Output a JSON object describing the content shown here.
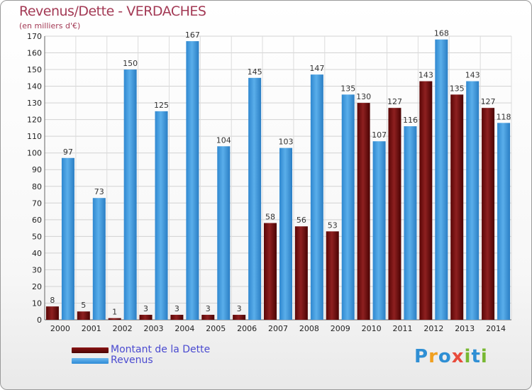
{
  "chart_data": {
    "type": "bar",
    "title": "Revenus/Dette - VERDACHES",
    "subtitle": "(en milliers d'€)",
    "categories": [
      "2000",
      "2001",
      "2002",
      "2003",
      "2004",
      "2005",
      "2006",
      "2007",
      "2008",
      "2009",
      "2010",
      "2011",
      "2012",
      "2013",
      "2014"
    ],
    "series": [
      {
        "name": "Montant de la Dette",
        "color": "#6e0a0a",
        "values": [
          8,
          5,
          1,
          3,
          3,
          3,
          3,
          58,
          56,
          53,
          130,
          127,
          143,
          135,
          127
        ]
      },
      {
        "name": "Revenus",
        "color": "#3c9be4",
        "values": [
          97,
          73,
          150,
          125,
          167,
          104,
          145,
          103,
          147,
          135,
          107,
          116,
          168,
          143,
          118
        ]
      }
    ],
    "ylim": [
      0,
      170
    ],
    "yticks": [
      0,
      10,
      20,
      30,
      40,
      50,
      60,
      70,
      80,
      90,
      100,
      110,
      120,
      130,
      140,
      150,
      160,
      170
    ],
    "grid": true,
    "legend": "bottom-left"
  },
  "brand": {
    "letters": [
      "P",
      "r",
      "o",
      "x",
      "i",
      "t",
      "i"
    ],
    "colors": [
      "#2f8fd4",
      "#f0a020",
      "#2f8fd4",
      "#e84c3c",
      "#78b832",
      "#2f8fd4",
      "#78b832"
    ]
  }
}
